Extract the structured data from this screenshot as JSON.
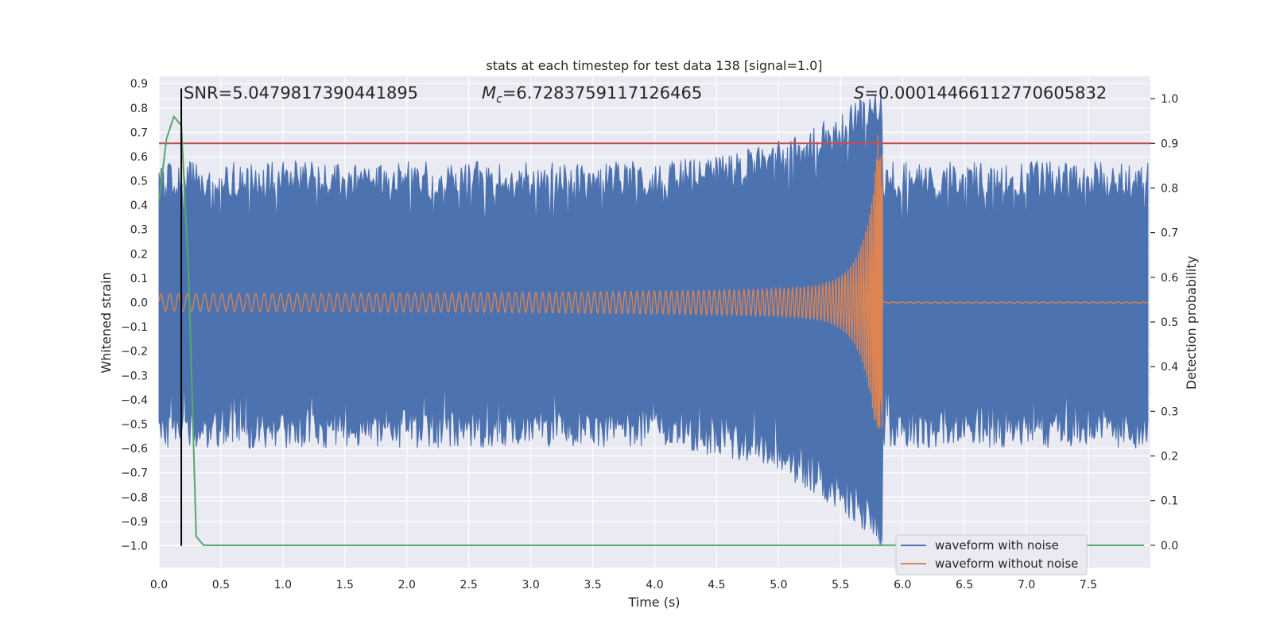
{
  "chart_data": {
    "type": "line",
    "title": "stats at each timestep for test data 138 [signal=1.0]",
    "xlabel": "Time (s)",
    "ylabel": "Whitened strain",
    "y2label": "Detection probability",
    "xlim": [
      0.0,
      8.0
    ],
    "ylim": [
      -1.09,
      0.93
    ],
    "y2lim": [
      -0.05,
      1.05
    ],
    "x_ticks": [
      "0.0",
      "0.5",
      "1.0",
      "1.5",
      "2.0",
      "2.5",
      "3.0",
      "3.5",
      "4.0",
      "4.5",
      "5.0",
      "5.5",
      "6.0",
      "6.5",
      "7.0",
      "7.5"
    ],
    "y_ticks": [
      "0.9",
      "0.8",
      "0.7",
      "0.6",
      "0.5",
      "0.4",
      "0.3",
      "0.2",
      "0.1",
      "0.0",
      "-0.1",
      "-0.2",
      "-0.3",
      "-0.4",
      "-0.5",
      "-0.6",
      "-0.7",
      "-0.8",
      "-0.9",
      "-1.0"
    ],
    "y2_ticks": [
      "1.0",
      "0.9",
      "0.8",
      "0.7",
      "0.6",
      "0.5",
      "0.4",
      "0.3",
      "0.2",
      "0.1",
      "0.0"
    ],
    "annotations": {
      "snr": "SNR=5.0479817390441895",
      "mc_symbol": "M",
      "mc_sub": "c",
      "mc_value": "=6.7283759117126465",
      "s_symbol": "S",
      "s_value": "=0.00014466112770605832"
    },
    "threshold_line": {
      "axis": "right",
      "value": 0.9,
      "color": "#c44e52"
    },
    "marker_line": {
      "x": 0.18,
      "color": "#000000"
    },
    "series": [
      {
        "name": "waveform with noise",
        "color": "#4c72b0",
        "axis": "left",
        "envelope": {
          "base_upper": 0.5,
          "base_lower": -0.52,
          "noise": 0.08,
          "peak_upper": 0.87,
          "peak_lower": -0.99,
          "peak_t": 5.8
        }
      },
      {
        "name": "waveform without noise",
        "color": "#dd8452",
        "axis": "left",
        "chirp": {
          "start_amp": 0.035,
          "merger_t": 5.84,
          "peak_upper": 0.7,
          "peak_lower": -0.52,
          "ringdown_amp": 0.003
        }
      },
      {
        "name": "detection probability",
        "color": "#55a868",
        "axis": "right",
        "x": [
          0.0,
          0.06,
          0.12,
          0.18,
          0.24,
          0.3,
          0.36,
          0.5,
          1.0,
          7.95
        ],
        "y": [
          0.77,
          0.91,
          0.96,
          0.94,
          0.6,
          0.02,
          0.0,
          0.0,
          0.0,
          0.0
        ]
      }
    ],
    "legend": [
      "waveform with noise",
      "waveform without noise"
    ],
    "legend_position": "lower-right",
    "colors": {
      "background": "#eaeaf2",
      "grid": "#ffffff"
    }
  }
}
